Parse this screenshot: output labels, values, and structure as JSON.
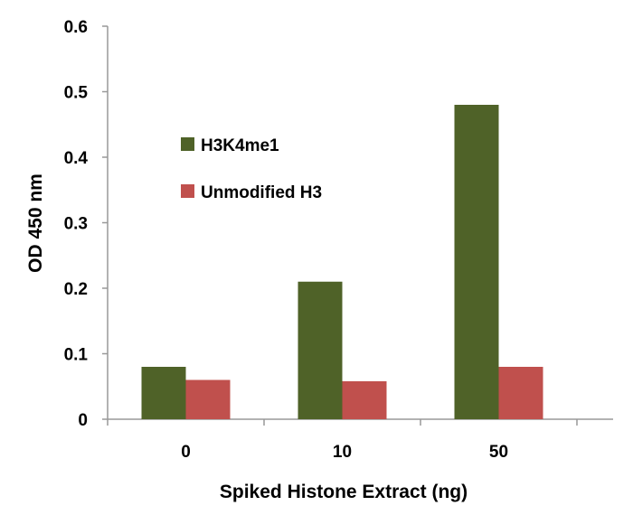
{
  "chart_data": {
    "type": "bar",
    "title": "",
    "xlabel": "Spiked Histone Extract (ng)",
    "ylabel": "OD 450 nm",
    "categories": [
      "0",
      "10",
      "50"
    ],
    "series": [
      {
        "name": "H3K4me1",
        "values": [
          0.08,
          0.21,
          0.48
        ],
        "color": "#4f6228"
      },
      {
        "name": "Unmodified H3",
        "values": [
          0.06,
          0.058,
          0.08
        ],
        "color": "#c0504d"
      }
    ],
    "ylim": [
      0,
      0.6
    ],
    "yticks": [
      "0",
      "0.1",
      "0.2",
      "0.3",
      "0.4",
      "0.5",
      "0.6"
    ],
    "grid": false,
    "legend": "upper-left inside plot"
  }
}
